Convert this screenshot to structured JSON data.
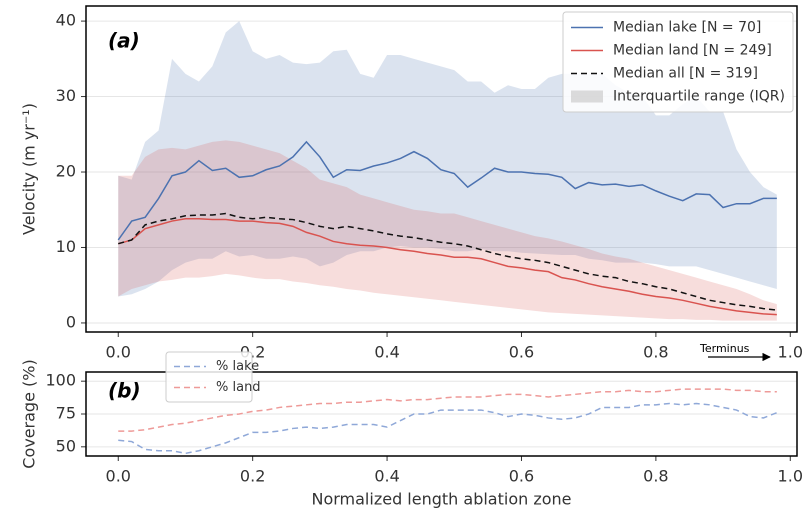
{
  "chart_data": [
    {
      "type": "line",
      "panel_label": "(a)",
      "ylabel": "Velocity (m yr⁻¹)",
      "annotation": "Terminus",
      "xlim": [
        -0.048,
        1.01
      ],
      "ylim": [
        -1.2,
        42
      ],
      "xticks": [
        {
          "value": 0,
          "label": "0.0"
        },
        0.2,
        0.4,
        0.6,
        0.8,
        {
          "value": 1,
          "label": "1.0"
        }
      ],
      "yticks": [
        0,
        10,
        20,
        30,
        40
      ],
      "grid": true,
      "legend": "upper right",
      "x": [
        0,
        0.02,
        0.04,
        0.06,
        0.08,
        0.1,
        0.12,
        0.14,
        0.16,
        0.18,
        0.2,
        0.22,
        0.24,
        0.26,
        0.28,
        0.3,
        0.32,
        0.34,
        0.36,
        0.38,
        0.4,
        0.42,
        0.44,
        0.46,
        0.48,
        0.5,
        0.52,
        0.54,
        0.56,
        0.58,
        0.6,
        0.62,
        0.64,
        0.66,
        0.68,
        0.7,
        0.72,
        0.74,
        0.76,
        0.78,
        0.8,
        0.82,
        0.84,
        0.86,
        0.88,
        0.9,
        0.92,
        0.94,
        0.96,
        0.98
      ],
      "series": [
        {
          "name": "Median lake [N = 70]",
          "color": "#4c72b0",
          "dash": "solid",
          "values": [
            11,
            13.5,
            14,
            16.5,
            19.5,
            20,
            21.5,
            20.2,
            20.5,
            19.3,
            19.5,
            20.3,
            20.8,
            22,
            24,
            22,
            19.3,
            20.3,
            20.2,
            20.8,
            21.2,
            21.8,
            22.7,
            21.8,
            20.3,
            19.8,
            18,
            19.2,
            20.5,
            20,
            20,
            19.8,
            19.7,
            19.3,
            17.8,
            18.6,
            18.3,
            18.4,
            18.1,
            18.3,
            17.5,
            16.8,
            16.2,
            17.1,
            17,
            15.3,
            15.8,
            15.8,
            16.5,
            16.5
          ]
        },
        {
          "name": "Median land [N = 249]",
          "color": "#d9534f",
          "dash": "solid",
          "values": [
            10.5,
            11,
            12.5,
            13,
            13.5,
            13.8,
            13.8,
            13.7,
            13.7,
            13.5,
            13.5,
            13.3,
            13.2,
            12.8,
            12,
            11.5,
            10.8,
            10.5,
            10.3,
            10.2,
            10,
            9.7,
            9.5,
            9.2,
            9,
            8.7,
            8.7,
            8.5,
            8,
            7.5,
            7.3,
            7,
            6.8,
            6,
            5.7,
            5.2,
            4.8,
            4.5,
            4.2,
            3.8,
            3.5,
            3.3,
            3,
            2.6,
            2.2,
            1.9,
            1.6,
            1.4,
            1.2,
            1.1
          ]
        },
        {
          "name": "Median all [N = 319]",
          "color": "#111111",
          "dash": "dashed",
          "values": [
            10.5,
            11,
            13,
            13.5,
            13.8,
            14.2,
            14.3,
            14.3,
            14.5,
            14,
            13.8,
            14,
            13.8,
            13.7,
            13.3,
            12.8,
            12.5,
            12.8,
            12.5,
            12.2,
            11.8,
            11.5,
            11.3,
            11,
            10.7,
            10.5,
            10.2,
            9.7,
            9.2,
            8.8,
            8.5,
            8.3,
            8,
            7.5,
            7,
            6.5,
            6.2,
            6,
            5.5,
            5.2,
            4.8,
            4.5,
            4,
            3.5,
            3,
            2.7,
            2.4,
            2.2,
            1.9,
            1.7
          ]
        }
      ],
      "band_name": "Interquartile range (IQR)",
      "bands": [
        {
          "color": "#4c72b0",
          "upper": [
            19.5,
            19,
            24,
            25.5,
            35,
            33,
            32,
            34,
            38.5,
            40,
            36,
            35,
            35.5,
            34.5,
            34.3,
            34.5,
            36,
            36.2,
            33,
            32.5,
            35.5,
            35.5,
            35,
            34.5,
            34,
            33.5,
            32,
            32,
            30.5,
            31.5,
            31,
            31,
            32.5,
            33,
            33,
            33,
            33,
            31.5,
            30.5,
            30,
            27.5,
            27.5,
            29,
            30,
            28,
            28,
            23,
            20,
            18,
            17
          ],
          "lower": [
            3.5,
            3.8,
            4.5,
            5.5,
            7,
            8,
            8.5,
            8.5,
            9.5,
            8.8,
            9,
            8.5,
            8.5,
            8.8,
            8.5,
            7.5,
            8,
            9,
            9.5,
            9.5,
            10,
            10.2,
            10,
            10,
            9.8,
            9.5,
            9.5,
            9.8,
            9.5,
            9.5,
            9.3,
            9.2,
            9.1,
            9,
            9,
            8.5,
            8.3,
            8,
            8,
            8,
            7.8,
            7.5,
            7.5,
            7.5,
            7,
            6.5,
            6,
            5.5,
            5,
            4.5
          ]
        },
        {
          "color": "#d9534f",
          "upper": [
            19.5,
            19.5,
            22,
            23,
            23.2,
            23,
            23.5,
            24,
            24.2,
            24,
            23.5,
            23,
            22.5,
            21.5,
            20.5,
            19,
            18.5,
            18,
            17,
            16.5,
            16,
            15.5,
            15,
            14.8,
            14.5,
            14.5,
            14,
            13.5,
            13,
            12.5,
            12,
            11.5,
            11.2,
            10.8,
            10.3,
            9.8,
            9.2,
            8.8,
            8.5,
            8,
            7.5,
            7,
            6.5,
            6,
            5.5,
            5,
            4.5,
            3.8,
            3,
            2.5
          ],
          "lower": [
            3.5,
            4.5,
            5,
            5.5,
            5.7,
            6,
            6,
            6.2,
            6.5,
            6.3,
            6,
            5.8,
            5.8,
            5.5,
            5.3,
            5,
            4.8,
            4.5,
            4.3,
            4,
            3.8,
            3.6,
            3.4,
            3.2,
            3,
            2.8,
            2.6,
            2.4,
            2.2,
            2,
            1.8,
            1.6,
            1.4,
            1.3,
            1.2,
            1.1,
            1,
            0.9,
            0.8,
            0.7,
            0.6,
            0.5,
            0.5,
            0.4,
            0.4,
            0.3,
            0.3,
            0.3,
            0.3,
            0.3
          ]
        }
      ]
    },
    {
      "type": "line",
      "panel_label": "(b)",
      "ylabel": "Coverage (%)",
      "xlabel": "Normalized length ablation zone",
      "xlim": [
        -0.048,
        1.01
      ],
      "ylim": [
        43,
        107
      ],
      "xticks": [
        {
          "value": 0,
          "label": "0.0"
        },
        0.2,
        0.4,
        0.6,
        0.8,
        {
          "value": 1,
          "label": "1.0"
        }
      ],
      "yticks": [
        50,
        75,
        100
      ],
      "grid": true,
      "legend": "upper left",
      "x": [
        0,
        0.02,
        0.04,
        0.06,
        0.08,
        0.1,
        0.12,
        0.14,
        0.16,
        0.18,
        0.2,
        0.22,
        0.24,
        0.26,
        0.28,
        0.3,
        0.32,
        0.34,
        0.36,
        0.38,
        0.4,
        0.42,
        0.44,
        0.46,
        0.48,
        0.5,
        0.52,
        0.54,
        0.56,
        0.58,
        0.6,
        0.62,
        0.64,
        0.66,
        0.68,
        0.7,
        0.72,
        0.74,
        0.76,
        0.78,
        0.8,
        0.82,
        0.84,
        0.86,
        0.88,
        0.9,
        0.92,
        0.94,
        0.96,
        0.98
      ],
      "series": [
        {
          "name": "% lake",
          "color": "#8fa8d8",
          "dash": "dashed",
          "values": [
            55,
            54,
            48,
            47,
            47,
            45,
            47,
            50,
            53,
            57,
            61,
            61,
            62,
            64,
            65,
            64,
            65,
            67,
            67,
            67,
            65,
            70,
            75,
            75,
            78,
            78,
            78,
            78,
            76,
            73,
            75,
            74,
            72,
            71,
            72,
            75,
            80,
            80,
            80,
            82,
            82,
            83,
            82,
            83,
            82,
            80,
            78,
            73,
            72,
            76
          ]
        },
        {
          "name": "% land",
          "color": "#ee9a98",
          "dash": "dashed",
          "values": [
            62,
            62,
            63,
            65,
            67,
            68,
            70,
            72,
            74,
            75,
            77,
            78,
            80,
            81,
            82,
            83,
            83,
            84,
            84,
            85,
            86,
            85,
            86,
            86,
            87,
            88,
            88,
            88,
            89,
            90,
            90,
            89,
            88,
            89,
            90,
            91,
            92,
            92,
            93,
            92,
            92,
            93,
            94,
            94,
            94,
            94,
            93,
            93,
            92,
            92
          ]
        }
      ]
    }
  ]
}
